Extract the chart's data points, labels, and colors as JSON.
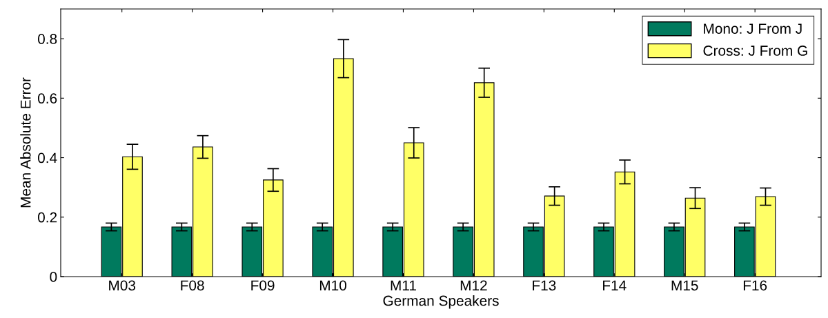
{
  "chart_data": {
    "type": "bar",
    "xlabel": "German Speakers",
    "ylabel": "Mean Absolute Error",
    "categories": [
      "M03",
      "F08",
      "F09",
      "M10",
      "M11",
      "M12",
      "F13",
      "F14",
      "M15",
      "F16"
    ],
    "series": [
      {
        "name": "Mono: J From J",
        "color": "#007a5e",
        "values": [
          0.167,
          0.167,
          0.167,
          0.167,
          0.167,
          0.167,
          0.167,
          0.167,
          0.167,
          0.167
        ],
        "errors": [
          0.013,
          0.013,
          0.013,
          0.013,
          0.013,
          0.013,
          0.013,
          0.013,
          0.013,
          0.013
        ]
      },
      {
        "name": "Cross: J From G",
        "color": "#ffff66",
        "values": [
          0.403,
          0.436,
          0.325,
          0.733,
          0.45,
          0.652,
          0.271,
          0.352,
          0.264,
          0.269
        ],
        "errors": [
          0.042,
          0.038,
          0.038,
          0.064,
          0.051,
          0.049,
          0.031,
          0.04,
          0.035,
          0.029
        ]
      }
    ],
    "ylim": [
      0,
      0.9
    ],
    "yticks": [
      0,
      0.2,
      0.4,
      0.6,
      0.8
    ],
    "grid": false,
    "legend": "top right"
  }
}
